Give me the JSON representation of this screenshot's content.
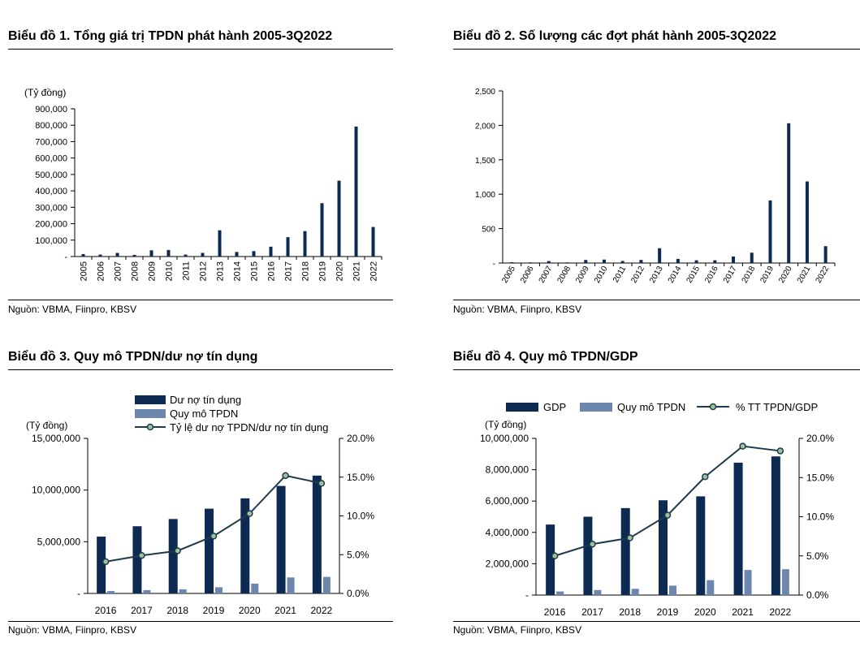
{
  "colors": {
    "dark": "#0d2b52",
    "light": "#6d86ad",
    "line": "#1e3a4c",
    "marker": "#9bc49d"
  },
  "panels": {
    "p1": {
      "title": "Biểu đồ 1.  Tổng giá trị TPDN phát hành 2005-3Q2022",
      "source": "Nguồn: VBMA, Fiinpro, KBSV"
    },
    "p2": {
      "title": "Biểu đồ 2. Số lượng các đợt phát hành 2005-3Q2022",
      "source": "Nguồn: VBMA, Fiinpro, KBSV"
    },
    "p3": {
      "title": "Biểu đồ 3.  Quy mô TPDN/dư nợ tín dụng",
      "source": "Nguồn: VBMA, Fiinpro, KBSV"
    },
    "p4": {
      "title": "Biểu đồ 4. Quy mô TPDN/GDP",
      "source": "Nguồn: VBMA, Fiinpro, KBSV"
    }
  },
  "chart_data": [
    {
      "id": "c1",
      "type": "bar",
      "title": "Tổng giá trị TPDN phát hành 2005-3Q2022",
      "ylabel": "(Tỷ đồng)",
      "ylim": [
        0,
        900000
      ],
      "yticks": [
        "-",
        "100,000",
        "200,000",
        "300,000",
        "400,000",
        "500,000",
        "600,000",
        "700,000",
        "800,000",
        "900,000"
      ],
      "categories": [
        "2005",
        "2006",
        "2007",
        "2008",
        "2009",
        "2010",
        "2011",
        "2012",
        "2013",
        "2014",
        "2015",
        "2016",
        "2017",
        "2018",
        "2019",
        "2020",
        "2021",
        "2022"
      ],
      "values": [
        15000,
        12000,
        22000,
        10000,
        38000,
        40000,
        12000,
        22000,
        160000,
        28000,
        33000,
        60000,
        118000,
        155000,
        325000,
        462000,
        792000,
        180000
      ]
    },
    {
      "id": "c2",
      "type": "bar",
      "title": "Số lượng các đợt phát hành 2005-3Q2022",
      "ylim": [
        0,
        2500
      ],
      "yticks": [
        "-",
        "500",
        "1,000",
        "1,500",
        "2,000",
        "2,500"
      ],
      "categories": [
        "2005",
        "2006",
        "2007",
        "2008",
        "2009",
        "2010",
        "2011",
        "2012",
        "2013",
        "2014",
        "2015",
        "2016",
        "2017",
        "2018",
        "2019",
        "2020",
        "2021",
        "2022"
      ],
      "values": [
        12,
        10,
        28,
        10,
        45,
        50,
        30,
        45,
        215,
        60,
        40,
        40,
        95,
        150,
        910,
        2030,
        1185,
        245
      ]
    },
    {
      "id": "c3",
      "type": "bar",
      "title": "Quy mô TPDN/dư nợ tín dụng",
      "ylabel": "(Tỷ đồng)",
      "ylim": [
        0,
        15000000
      ],
      "y2lim": [
        0,
        0.2
      ],
      "yticks": [
        "-",
        "5,000,000",
        "10,000,000",
        "15,000,000"
      ],
      "y2ticks": [
        "0.0%",
        "5.0%",
        "10.0%",
        "15.0%",
        "20.0%"
      ],
      "categories": [
        "2016",
        "2017",
        "2018",
        "2019",
        "2020",
        "2021",
        "2022"
      ],
      "series": [
        {
          "name": "Dư nợ tín dụng",
          "kind": "bar",
          "values": [
            5500000,
            6500000,
            7200000,
            8200000,
            9200000,
            10400000,
            11400000
          ]
        },
        {
          "name": "Quy mô TPDN",
          "kind": "bar",
          "values": [
            230000,
            320000,
            400000,
            600000,
            950000,
            1550000,
            1600000
          ]
        },
        {
          "name": "Tỷ lệ dư nợ TPDN/dư nợ tín dụng",
          "kind": "line",
          "axis": "y2",
          "values": [
            0.041,
            0.049,
            0.055,
            0.074,
            0.103,
            0.152,
            0.142
          ]
        }
      ]
    },
    {
      "id": "c4",
      "type": "bar",
      "title": "Quy mô TPDN/GDP",
      "ylabel": "(Tỷ đồng)",
      "ylim": [
        0,
        10000000
      ],
      "y2lim": [
        0,
        0.2
      ],
      "yticks": [
        "-",
        "2,000,000",
        "4,000,000",
        "6,000,000",
        "8,000,000",
        "10,000,000"
      ],
      "y2ticks": [
        "0.0%",
        "5.0%",
        "10.0%",
        "15.0%",
        "20.0%"
      ],
      "categories": [
        "2016",
        "2017",
        "2018",
        "2019",
        "2020",
        "2021",
        "2022"
      ],
      "series": [
        {
          "name": "GDP",
          "kind": "bar",
          "values": [
            4500000,
            5000000,
            5550000,
            6050000,
            6300000,
            8450000,
            8850000
          ]
        },
        {
          "name": "Quy mô TPDN",
          "kind": "bar",
          "values": [
            230000,
            320000,
            400000,
            600000,
            950000,
            1600000,
            1650000
          ]
        },
        {
          "name": "% TT TPDN/GDP",
          "kind": "line",
          "axis": "y2",
          "values": [
            0.05,
            0.065,
            0.073,
            0.102,
            0.151,
            0.19,
            0.184
          ]
        }
      ]
    }
  ]
}
